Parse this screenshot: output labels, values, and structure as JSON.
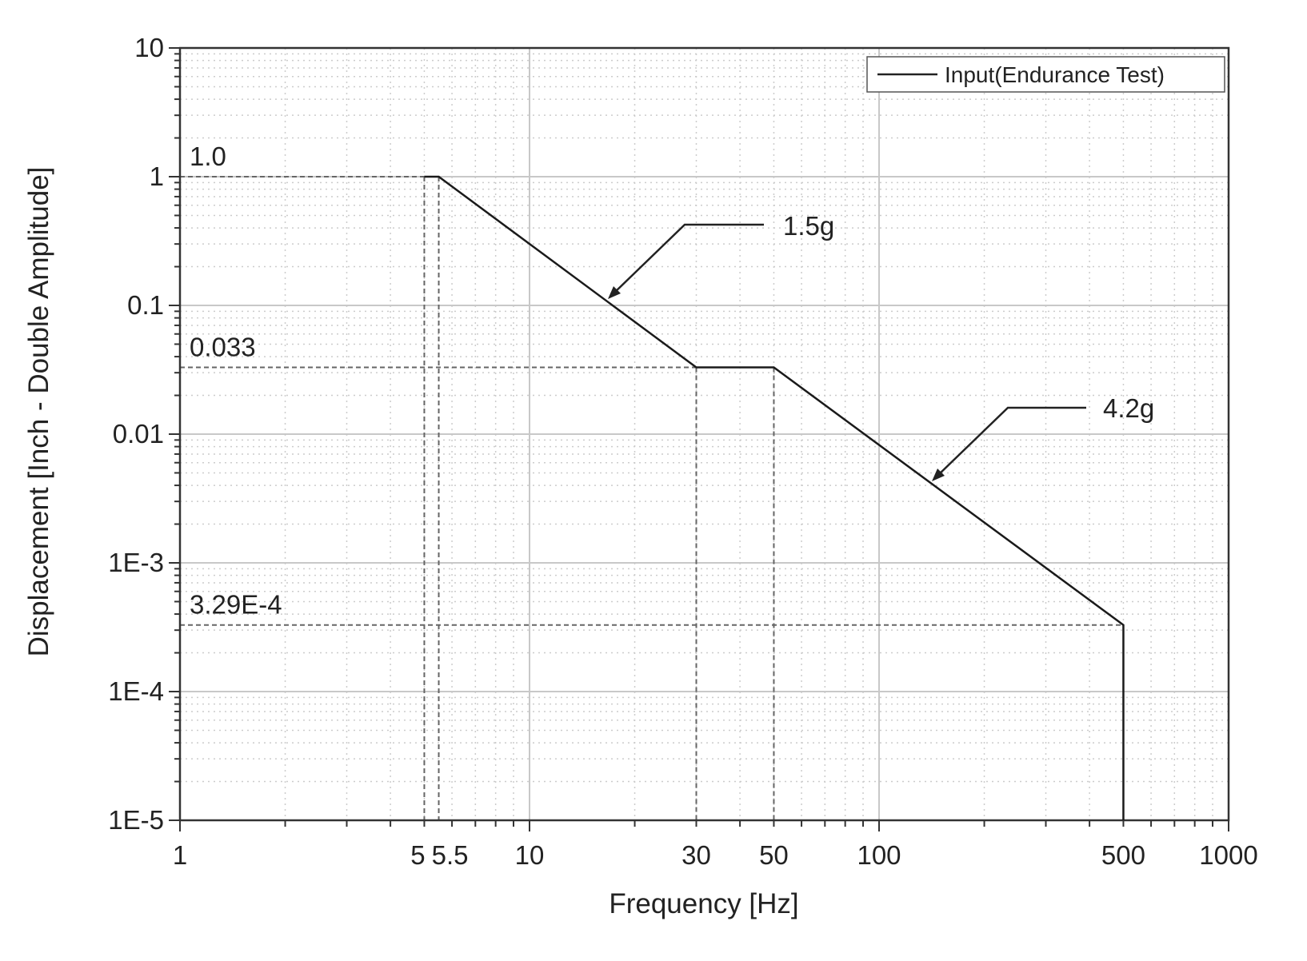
{
  "chart_data": {
    "type": "line",
    "xlabel": "Frequency [Hz]",
    "ylabel": "Displacement [Inch - Double Amplitude]",
    "xscale": "log",
    "yscale": "log",
    "xlim": [
      1,
      1000
    ],
    "ylim": [
      1e-05,
      10
    ],
    "grid": true,
    "legend_position": "top-right",
    "x_tick_labels": [
      {
        "value": 1,
        "label": "1"
      },
      {
        "value": 5,
        "label": "5"
      },
      {
        "value": 5.5,
        "label": "5.5"
      },
      {
        "value": 10,
        "label": "10"
      },
      {
        "value": 30,
        "label": "30"
      },
      {
        "value": 50,
        "label": "50"
      },
      {
        "value": 100,
        "label": "100"
      },
      {
        "value": 500,
        "label": "500"
      },
      {
        "value": 1000,
        "label": "1000"
      }
    ],
    "y_tick_labels": [
      {
        "value": 10,
        "label": "10"
      },
      {
        "value": 1,
        "label": "1"
      },
      {
        "value": 0.1,
        "label": "0.1"
      },
      {
        "value": 0.01,
        "label": "0.01"
      },
      {
        "value": 0.001,
        "label": "1E-3"
      },
      {
        "value": 0.0001,
        "label": "1E-4"
      },
      {
        "value": 1e-05,
        "label": "1E-5"
      }
    ],
    "series": [
      {
        "name": "Input(Endurance Test)",
        "color": "#1a1a1a",
        "x": [
          5,
          5.5,
          30,
          50,
          500,
          500
        ],
        "y": [
          1,
          1,
          0.033,
          0.033,
          0.000329,
          1e-05
        ]
      }
    ],
    "reference_lines": {
      "horizontal": [
        {
          "value": 1,
          "label": "1.0",
          "to_x": 5.5
        },
        {
          "value": 0.033,
          "label": "0.033",
          "to_x": 50
        },
        {
          "value": 0.000329,
          "label": "3.29E-4",
          "to_x": 500
        }
      ],
      "vertical": [
        {
          "value": 5,
          "from_y": 1
        },
        {
          "value": 5.5,
          "from_y": 1
        },
        {
          "value": 30,
          "from_y": 0.033
        },
        {
          "value": 50,
          "from_y": 0.033
        }
      ]
    },
    "annotations": [
      {
        "text": "1.5g",
        "points_to": {
          "x": 17.5,
          "y": 0.11
        }
      },
      {
        "text": "4.2g",
        "points_to": {
          "x": 145,
          "y": 0.0042
        }
      }
    ]
  }
}
